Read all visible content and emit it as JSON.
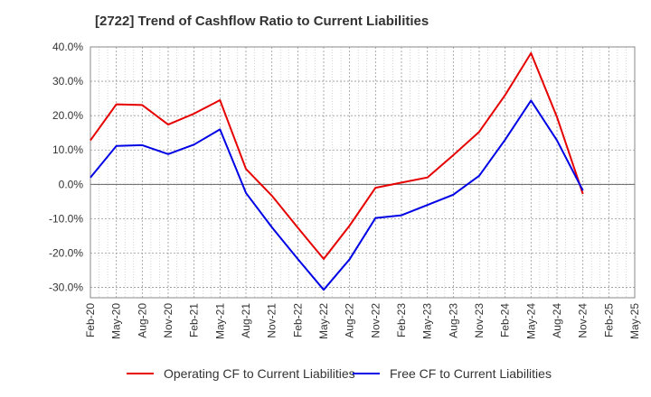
{
  "chart_data": {
    "type": "line",
    "title": "[2722]  Trend of Cashflow Ratio to Current Liabilities",
    "xlabel": "",
    "ylabel": "",
    "categories": [
      "Feb-20",
      "May-20",
      "Aug-20",
      "Nov-20",
      "Feb-21",
      "May-21",
      "Aug-21",
      "Nov-21",
      "Feb-22",
      "May-22",
      "Aug-22",
      "Nov-22",
      "Feb-23",
      "May-23",
      "Aug-23",
      "Nov-23",
      "Feb-24",
      "May-24",
      "Aug-24",
      "Nov-24",
      "Feb-25",
      "May-25"
    ],
    "ylim": [
      -33,
      40
    ],
    "yticks": [
      40,
      30,
      20,
      10,
      0,
      -10,
      -20,
      -30
    ],
    "ytick_labels": [
      "40.0%",
      "30.0%",
      "20.0%",
      "10.0%",
      "0.0%",
      "-10.0%",
      "-20.0%",
      "-30.0%"
    ],
    "grid": true,
    "legend_position": "bottom",
    "series": [
      {
        "name": "Operating CF to Current Liabilities",
        "color": "#e60000",
        "values": [
          12.8,
          23.3,
          23.1,
          17.4,
          20.6,
          24.5,
          4.5,
          -3.3,
          -12.6,
          -21.7,
          -12.0,
          -1.0,
          0.5,
          2.0,
          8.5,
          15.3,
          26.0,
          38.2,
          19.6,
          -2.8,
          null,
          null
        ]
      },
      {
        "name": "Free CF to Current Liabilities",
        "color": "#0000e6",
        "values": [
          2.0,
          11.2,
          11.4,
          8.8,
          11.6,
          16.0,
          -2.5,
          -12.5,
          -21.7,
          -30.7,
          -21.8,
          -9.8,
          -9.0,
          -6.0,
          -3.0,
          2.5,
          13.0,
          24.4,
          12.8,
          -1.8,
          null,
          null
        ]
      }
    ]
  }
}
